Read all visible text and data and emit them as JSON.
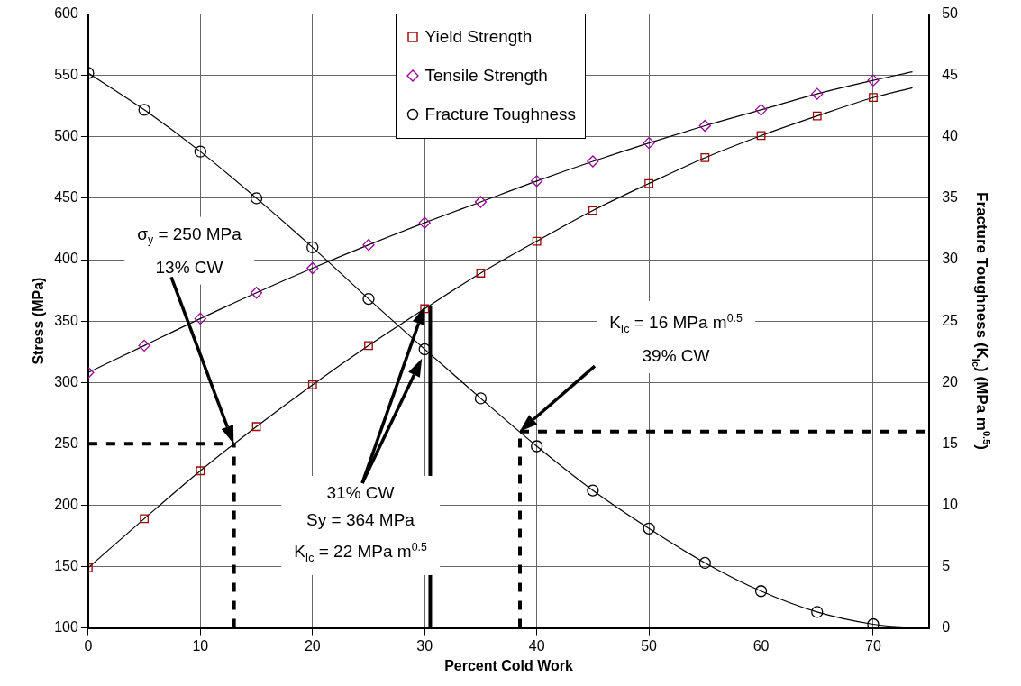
{
  "chart_data": {
    "type": "scatter",
    "xlabel": "Percent Cold Work",
    "ylabel": "Stress (MPa)",
    "y2label": "Fracture Toughness (K$_{Ic}$) (MPa m$^{0.5}$)",
    "xlim": [
      0,
      75
    ],
    "xticks": [
      0,
      10,
      20,
      30,
      40,
      50,
      60,
      70
    ],
    "ylim": [
      100,
      600
    ],
    "yticks": [
      100,
      150,
      200,
      250,
      300,
      350,
      400,
      450,
      500,
      550,
      600
    ],
    "y2lim": [
      0,
      50
    ],
    "y2ticks": [
      0,
      5,
      10,
      15,
      20,
      25,
      30,
      35,
      40,
      45,
      50
    ],
    "grid": true,
    "legend": "top",
    "line_style": "solid",
    "x": [
      0,
      5,
      10,
      15,
      20,
      25,
      30,
      35,
      40,
      45,
      50,
      55,
      60,
      65,
      70
    ],
    "series": [
      {
        "name": "Yield Strength",
        "type": "scatter",
        "marker": "square",
        "color": "#990000",
        "values": [
          149,
          189,
          228,
          264,
          298,
          330,
          360,
          389,
          415,
          440,
          462,
          483,
          501,
          517,
          532
        ]
      },
      {
        "name": "Tensile Strength",
        "type": "scatter",
        "marker": "diamond",
        "color": "#990099",
        "values": [
          308,
          330,
          352,
          373,
          393,
          412,
          430,
          447,
          464,
          480,
          495,
          509,
          522,
          535,
          546
        ]
      },
      {
        "name": "Fracture Toughness",
        "type": "scatter",
        "marker": "circle",
        "color": "#000000",
        "axis": "y2",
        "values": [
          45.2,
          42.2,
          38.8,
          35,
          31,
          26.8,
          22.7,
          18.7,
          14.8,
          11.2,
          8.1,
          5.3,
          3,
          1.3,
          0.3
        ]
      },
      {
        "type": "line",
        "marker": "none",
        "color": "#000000",
        "x": [
          0,
          5,
          10,
          15,
          20,
          25,
          30,
          35,
          40,
          45,
          50,
          55,
          60,
          65,
          70,
          73.5
        ],
        "values": [
          149,
          189,
          228,
          264,
          298,
          330,
          360,
          389,
          415,
          440,
          462,
          483,
          501,
          517,
          532,
          540
        ]
      },
      {
        "type": "line",
        "marker": "none",
        "color": "#000000",
        "x": [
          0,
          5,
          10,
          15,
          20,
          25,
          30,
          35,
          40,
          45,
          50,
          55,
          60,
          65,
          70,
          73.5
        ],
        "values": [
          308,
          330,
          352,
          373,
          393,
          412,
          430,
          447,
          464,
          480,
          495,
          509,
          522,
          535,
          546,
          553
        ]
      },
      {
        "type": "line",
        "marker": "none",
        "color": "#000000",
        "axis": "y2",
        "x": [
          0,
          5,
          10,
          15,
          20,
          25,
          30,
          35,
          40,
          45,
          50,
          55,
          60,
          65,
          70,
          73.5
        ],
        "values": [
          45.2,
          42.2,
          38.8,
          35,
          31,
          26.8,
          22.7,
          18.7,
          14.8,
          11.2,
          8.1,
          5.3,
          3,
          1.3,
          0.3,
          0
        ]
      },
      {
        "type": "line",
        "marker": "none",
        "line_style": "dashed",
        "color": "#000000",
        "x": [
          0,
          13
        ],
        "values": [
          250,
          250
        ]
      },
      {
        "type": "line",
        "marker": "none",
        "line_style": "dashed",
        "color": "#000000",
        "x": [
          13,
          13
        ],
        "values": [
          100,
          250
        ]
      },
      {
        "type": "line",
        "marker": "none",
        "line_style": "dashed",
        "color": "#000000",
        "axis": "y2",
        "x": [
          38.5,
          38.5
        ],
        "values": [
          0,
          16
        ]
      },
      {
        "type": "line",
        "marker": "none",
        "line_style": "dashed",
        "color": "#000000",
        "axis": "y2",
        "x": [
          38.5,
          75
        ],
        "values": [
          16,
          16
        ]
      },
      {
        "type": "line",
        "marker": "none",
        "line_style": "solid",
        "color": "#000000",
        "x": [
          30.5,
          30.5
        ],
        "values": [
          100,
          362
        ]
      }
    ],
    "annotations": [
      "σ$_{y}$ = 250 MPa\n13% CW",
      "31% CW\nSy = 364 MPa\nK$_{Ic}$ = 22 MPa m$^{0.5}$",
      "K$_{Ic}$ = 16 MPa m$^{0.5}$\n39% CW"
    ]
  }
}
